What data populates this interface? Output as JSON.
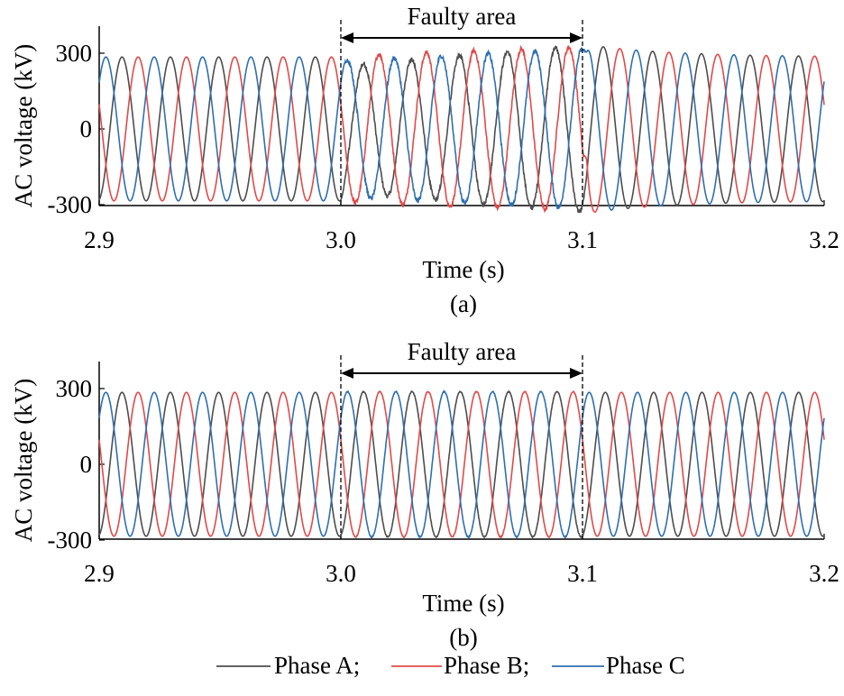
{
  "chart_data": [
    {
      "type": "line",
      "panel_label": "(a)",
      "xlabel": "Time (s)",
      "ylabel": "AC voltage (kV)",
      "xlim": [
        2.9,
        3.2
      ],
      "ylim": [
        -300,
        300
      ],
      "xticks": [
        "2.9",
        "3.0",
        "3.1",
        "3.2"
      ],
      "yticks": [
        "300",
        "0",
        "-300"
      ],
      "annotation": {
        "text": "Faulty area",
        "x_start": 3.0,
        "x_end": 3.1
      },
      "frequency_hz": 50,
      "nominal_amplitude_kv": 285,
      "fault_behavior": "distorted, unbalanced oscillation with peaks reaching about 330 kV and some noise during 3.0–3.1 s, with a transient overshoot after fault clearing",
      "series": [
        {
          "name": "Phase A",
          "color": "#4d4d4d",
          "phase_deg": -80
        },
        {
          "name": "Phase B",
          "color": "#e04a4a",
          "phase_deg": 160
        },
        {
          "name": "Phase C",
          "color": "#2f6fb0",
          "phase_deg": 40
        }
      ]
    },
    {
      "type": "line",
      "panel_label": "(b)",
      "xlabel": "Time (s)",
      "ylabel": "AC voltage (kV)",
      "xlim": [
        2.9,
        3.2
      ],
      "ylim": [
        -300,
        300
      ],
      "xticks": [
        "2.9",
        "3.0",
        "3.1",
        "3.2"
      ],
      "yticks": [
        "300",
        "0",
        "-300"
      ],
      "annotation": {
        "text": "Faulty area",
        "x_start": 3.0,
        "x_end": 3.1
      },
      "frequency_hz": 50,
      "nominal_amplitude_kv": 285,
      "fault_behavior": "balanced sinusoidal voltage maintained throughout the faulty area",
      "series": [
        {
          "name": "Phase A",
          "color": "#4d4d4d",
          "phase_deg": -80
        },
        {
          "name": "Phase B",
          "color": "#e04a4a",
          "phase_deg": 160
        },
        {
          "name": "Phase C",
          "color": "#2f6fb0",
          "phase_deg": 40
        }
      ]
    }
  ],
  "legend": {
    "placement": "bottom-center",
    "entries": [
      "Phase A;",
      "Phase B;",
      "Phase C"
    ]
  }
}
